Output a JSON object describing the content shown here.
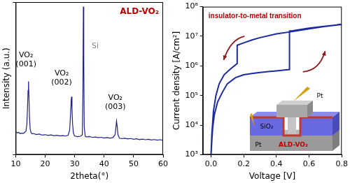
{
  "chart_data": [
    {
      "type": "line",
      "title": "ALD-VO₂",
      "x_label": "2theta(°)",
      "y_label": "Intensity (a.u.)",
      "color": "#1e1e8c",
      "grid": false,
      "tick_labels": "x",
      "xlim": [
        10,
        60
      ],
      "xticks": [
        10,
        20,
        30,
        40,
        50,
        60
      ],
      "ylim": [
        0,
        100
      ],
      "yticks": [
        0,
        100
      ],
      "x": [
        10,
        10.5,
        11,
        11.5,
        12,
        12.5,
        13,
        13.5,
        13.8,
        14.0,
        14.2,
        14.35,
        14.5,
        14.7,
        14.9,
        15.2,
        15.6,
        16,
        17,
        18,
        19,
        20,
        21,
        22,
        23,
        24,
        25,
        26,
        27,
        27.8,
        28.3,
        28.6,
        28.8,
        28.95,
        29.1,
        29.3,
        29.6,
        30,
        31,
        32,
        32.6,
        32.8,
        32.95,
        33.1,
        33.25,
        33.6,
        34,
        35,
        36,
        37,
        38,
        39,
        40,
        41,
        42,
        43,
        43.7,
        44.0,
        44.2,
        44.4,
        44.7,
        45.2,
        46,
        47,
        48,
        49,
        50,
        51,
        52,
        53,
        54,
        55,
        56,
        57,
        58,
        59,
        60
      ],
      "values": [
        15,
        14.2,
        14.6,
        13.8,
        14.1,
        13.9,
        14.5,
        15.5,
        20,
        30,
        42,
        48,
        38,
        24,
        17,
        14.5,
        13.6,
        13.9,
        13.2,
        13.5,
        12.8,
        13.1,
        12.6,
        12.9,
        12.4,
        12.7,
        12.3,
        12.5,
        12.2,
        12.8,
        16,
        26,
        35,
        38,
        30,
        20,
        14,
        12.2,
        11.8,
        12.1,
        13,
        40,
        97,
        60,
        18,
        12,
        11.6,
        11.9,
        11.3,
        11.6,
        11.1,
        11.4,
        10.9,
        11.2,
        10.8,
        11.2,
        13,
        18,
        22,
        19,
        13,
        10.8,
        10.5,
        10.8,
        10.3,
        10.6,
        10.1,
        10.4,
        9.9,
        10.2,
        9.8,
        10.1,
        9.6,
        9.9,
        9.5,
        9.8,
        9.4
      ],
      "annotations": [
        {
          "text": [
            "VO₂",
            "(001)"
          ],
          "x": 13.5,
          "y": 58
        },
        {
          "text": [
            "VO₂",
            "(002)"
          ],
          "x": 25.6,
          "y": 46
        },
        {
          "text": [
            "Si"
          ],
          "x": 37,
          "y": 70,
          "color": "#808080"
        },
        {
          "text": [
            "VO₂",
            "(003)"
          ],
          "x": 43.8,
          "y": 30
        }
      ]
    },
    {
      "type": "line",
      "title": "insulator-to-metal transition",
      "x_label": "Voltage [V]",
      "y_label": "Current density [A/cm²]",
      "color": "#1a2aa0",
      "grid": false,
      "log": "y",
      "xlim": [
        -0.05,
        0.8
      ],
      "xticks": [
        {
          "value": 0,
          "label": "0.0"
        },
        0.2,
        0.4,
        0.6,
        0.8
      ],
      "ylim": [
        1000,
        100000000
      ],
      "yticks": [
        {
          "value": 1000,
          "label": "10³"
        },
        {
          "value": 10000,
          "label": "10⁴"
        },
        {
          "value": 100000,
          "label": "10⁵"
        },
        {
          "value": 1000000,
          "label": "10⁶"
        },
        {
          "value": 10000000,
          "label": "10⁷"
        },
        {
          "value": 100000000,
          "label": "10⁸"
        }
      ],
      "x": [
        0.0,
        0.005,
        0.01,
        0.02,
        0.04,
        0.07,
        0.1,
        0.15,
        0.2,
        0.25,
        0.3,
        0.35,
        0.4,
        0.45,
        0.48,
        0.48,
        0.5,
        0.6,
        0.7,
        0.8,
        0.7,
        0.6,
        0.5,
        0.4,
        0.3,
        0.25,
        0.2,
        0.16,
        0.16,
        0.12,
        0.08,
        0.05,
        0.03,
        0.015,
        0.005,
        0.0
      ],
      "values": [
        1000,
        3000,
        8000,
        22000,
        60000,
        130000,
        250000,
        400000,
        500000,
        550000,
        600000,
        640000,
        680000,
        720000,
        750000,
        15000000,
        15500000,
        19000000,
        22000000,
        25000000,
        21500000,
        18000000,
        14500000,
        12000000,
        9000000,
        7500000,
        6000000,
        5000000,
        1200000,
        800000,
        500000,
        250000,
        100000,
        30000,
        5000,
        1000
      ],
      "inset": {
        "top_electrode": "Pt",
        "insulator": "SiO₂",
        "channel": "ALD-VO₂",
        "bottom_electrode": "Pt"
      }
    }
  ]
}
